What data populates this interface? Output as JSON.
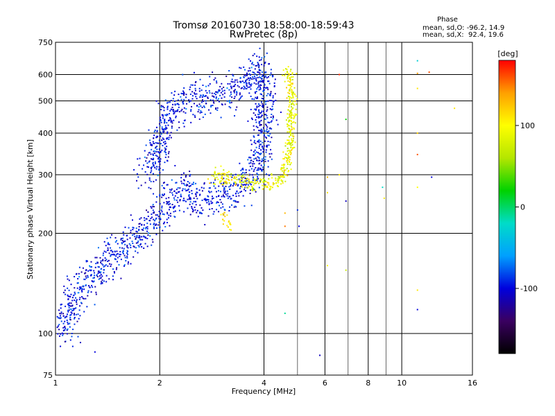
{
  "chart_data": {
    "type": "scatter",
    "title": "Tromsø 20160730 18:58:00-18:59:43",
    "subtitle": "RwPretec (8p)",
    "xlabel": "Frequency [MHz]",
    "ylabel": "Stationary phase Virtual Height [km]",
    "x_scale": "log",
    "y_scale": "log",
    "xlim": [
      1,
      16
    ],
    "ylim": [
      75,
      750
    ],
    "x_ticks": [
      1,
      2,
      4,
      6,
      8,
      10,
      16
    ],
    "y_ticks": [
      75,
      100,
      200,
      300,
      400,
      500,
      600,
      750
    ],
    "grid": true,
    "phase_stats": {
      "heading": "Phase",
      "o_line": "mean, sd,O: -96.2, 14.9",
      "x_line": "mean, sd,X:  92.4, 19.6"
    },
    "colorbar": {
      "label": "[deg]",
      "range": [
        -180,
        180
      ],
      "ticks": [
        100,
        0,
        -100
      ],
      "colormap": [
        "#000000",
        "#3a0060",
        "#0000dd",
        "#00a0ff",
        "#00dcc8",
        "#00d200",
        "#b4e600",
        "#ffff00",
        "#ffa000",
        "#ff0000"
      ]
    },
    "series": [
      {
        "type": "scatter-band",
        "trend": [
          [
            1.02,
            100
          ],
          [
            1.08,
            110
          ],
          [
            1.12,
            125
          ],
          [
            1.2,
            140
          ],
          [
            1.3,
            150
          ],
          [
            1.4,
            165
          ],
          [
            1.5,
            175
          ],
          [
            1.6,
            185
          ],
          [
            1.7,
            195
          ],
          [
            1.8,
            205
          ],
          [
            1.9,
            215
          ],
          [
            2.0,
            230
          ],
          [
            2.1,
            245
          ],
          [
            2.2,
            260
          ],
          [
            2.35,
            270
          ],
          [
            2.5,
            265
          ]
        ],
        "phase_mean": -96,
        "phase_sd": 14
      },
      {
        "type": "scatter-band",
        "trend": [
          [
            1.8,
            300
          ],
          [
            1.95,
            330
          ],
          [
            2.0,
            360
          ],
          [
            2.05,
            420
          ],
          [
            2.1,
            450
          ],
          [
            2.2,
            470
          ],
          [
            2.3,
            490
          ],
          [
            2.45,
            510
          ],
          [
            2.6,
            520
          ]
        ],
        "phase_mean": -96,
        "phase_sd": 14
      },
      {
        "type": "scatter-band",
        "trend": [
          [
            2.6,
            490
          ],
          [
            2.8,
            510
          ],
          [
            3.0,
            525
          ],
          [
            3.2,
            540
          ],
          [
            3.4,
            560
          ],
          [
            3.6,
            590
          ],
          [
            3.8,
            615
          ],
          [
            3.95,
            630
          ],
          [
            4.0,
            600
          ],
          [
            4.0,
            520
          ],
          [
            3.98,
            450
          ],
          [
            3.95,
            400
          ],
          [
            3.9,
            350
          ],
          [
            3.8,
            310
          ],
          [
            3.6,
            290
          ],
          [
            3.4,
            275
          ],
          [
            3.2,
            265
          ],
          [
            3.0,
            260
          ],
          [
            2.8,
            255
          ],
          [
            2.6,
            250
          ],
          [
            2.4,
            250
          ]
        ],
        "phase_mean": -96,
        "phase_sd": 14
      },
      {
        "type": "scatter-band",
        "trend": [
          [
            2.8,
            300
          ],
          [
            3.0,
            295
          ],
          [
            3.3,
            292
          ],
          [
            3.6,
            288
          ],
          [
            3.9,
            280
          ],
          [
            4.1,
            280
          ],
          [
            4.3,
            285
          ],
          [
            4.5,
            295
          ],
          [
            4.65,
            320
          ],
          [
            4.75,
            360
          ],
          [
            4.8,
            420
          ],
          [
            4.82,
            500
          ],
          [
            4.78,
            560
          ],
          [
            4.7,
            600
          ],
          [
            4.6,
            620
          ]
        ],
        "phase_mean": 92,
        "phase_sd": 19
      },
      {
        "type": "scatter-band",
        "trend": [
          [
            3.1,
            225
          ],
          [
            3.12,
            218
          ],
          [
            3.15,
            212
          ]
        ],
        "phase_mean": 110,
        "phase_sd": 10
      },
      {
        "type": "scatter",
        "points": [
          [
            1.3,
            88
          ],
          [
            5.8,
            86
          ],
          [
            4.6,
            115
          ],
          [
            4.6,
            230
          ],
          [
            4.6,
            210
          ],
          [
            5.0,
            235
          ],
          [
            5.05,
            210
          ],
          [
            6.1,
            295
          ],
          [
            6.1,
            265
          ],
          [
            6.1,
            160
          ],
          [
            6.6,
            300
          ],
          [
            6.6,
            600
          ],
          [
            6.9,
            440
          ],
          [
            6.9,
            250
          ],
          [
            6.9,
            155
          ],
          [
            8.8,
            275
          ],
          [
            8.9,
            255
          ],
          [
            11.1,
            660
          ],
          [
            11.1,
            605
          ],
          [
            11.1,
            545
          ],
          [
            11.1,
            400
          ],
          [
            11.1,
            345
          ],
          [
            11.1,
            275
          ],
          [
            11.1,
            135
          ],
          [
            11.1,
            118
          ],
          [
            12.0,
            610
          ],
          [
            12.2,
            295
          ],
          [
            14.2,
            475
          ]
        ],
        "phase": [
          -100,
          -110,
          -10,
          130,
          150,
          -90,
          -100,
          130,
          110,
          100,
          110,
          170,
          20,
          -110,
          70,
          -20,
          110,
          -30,
          140,
          110,
          120,
          160,
          100,
          110,
          -100,
          160,
          -100,
          110
        ]
      }
    ]
  }
}
